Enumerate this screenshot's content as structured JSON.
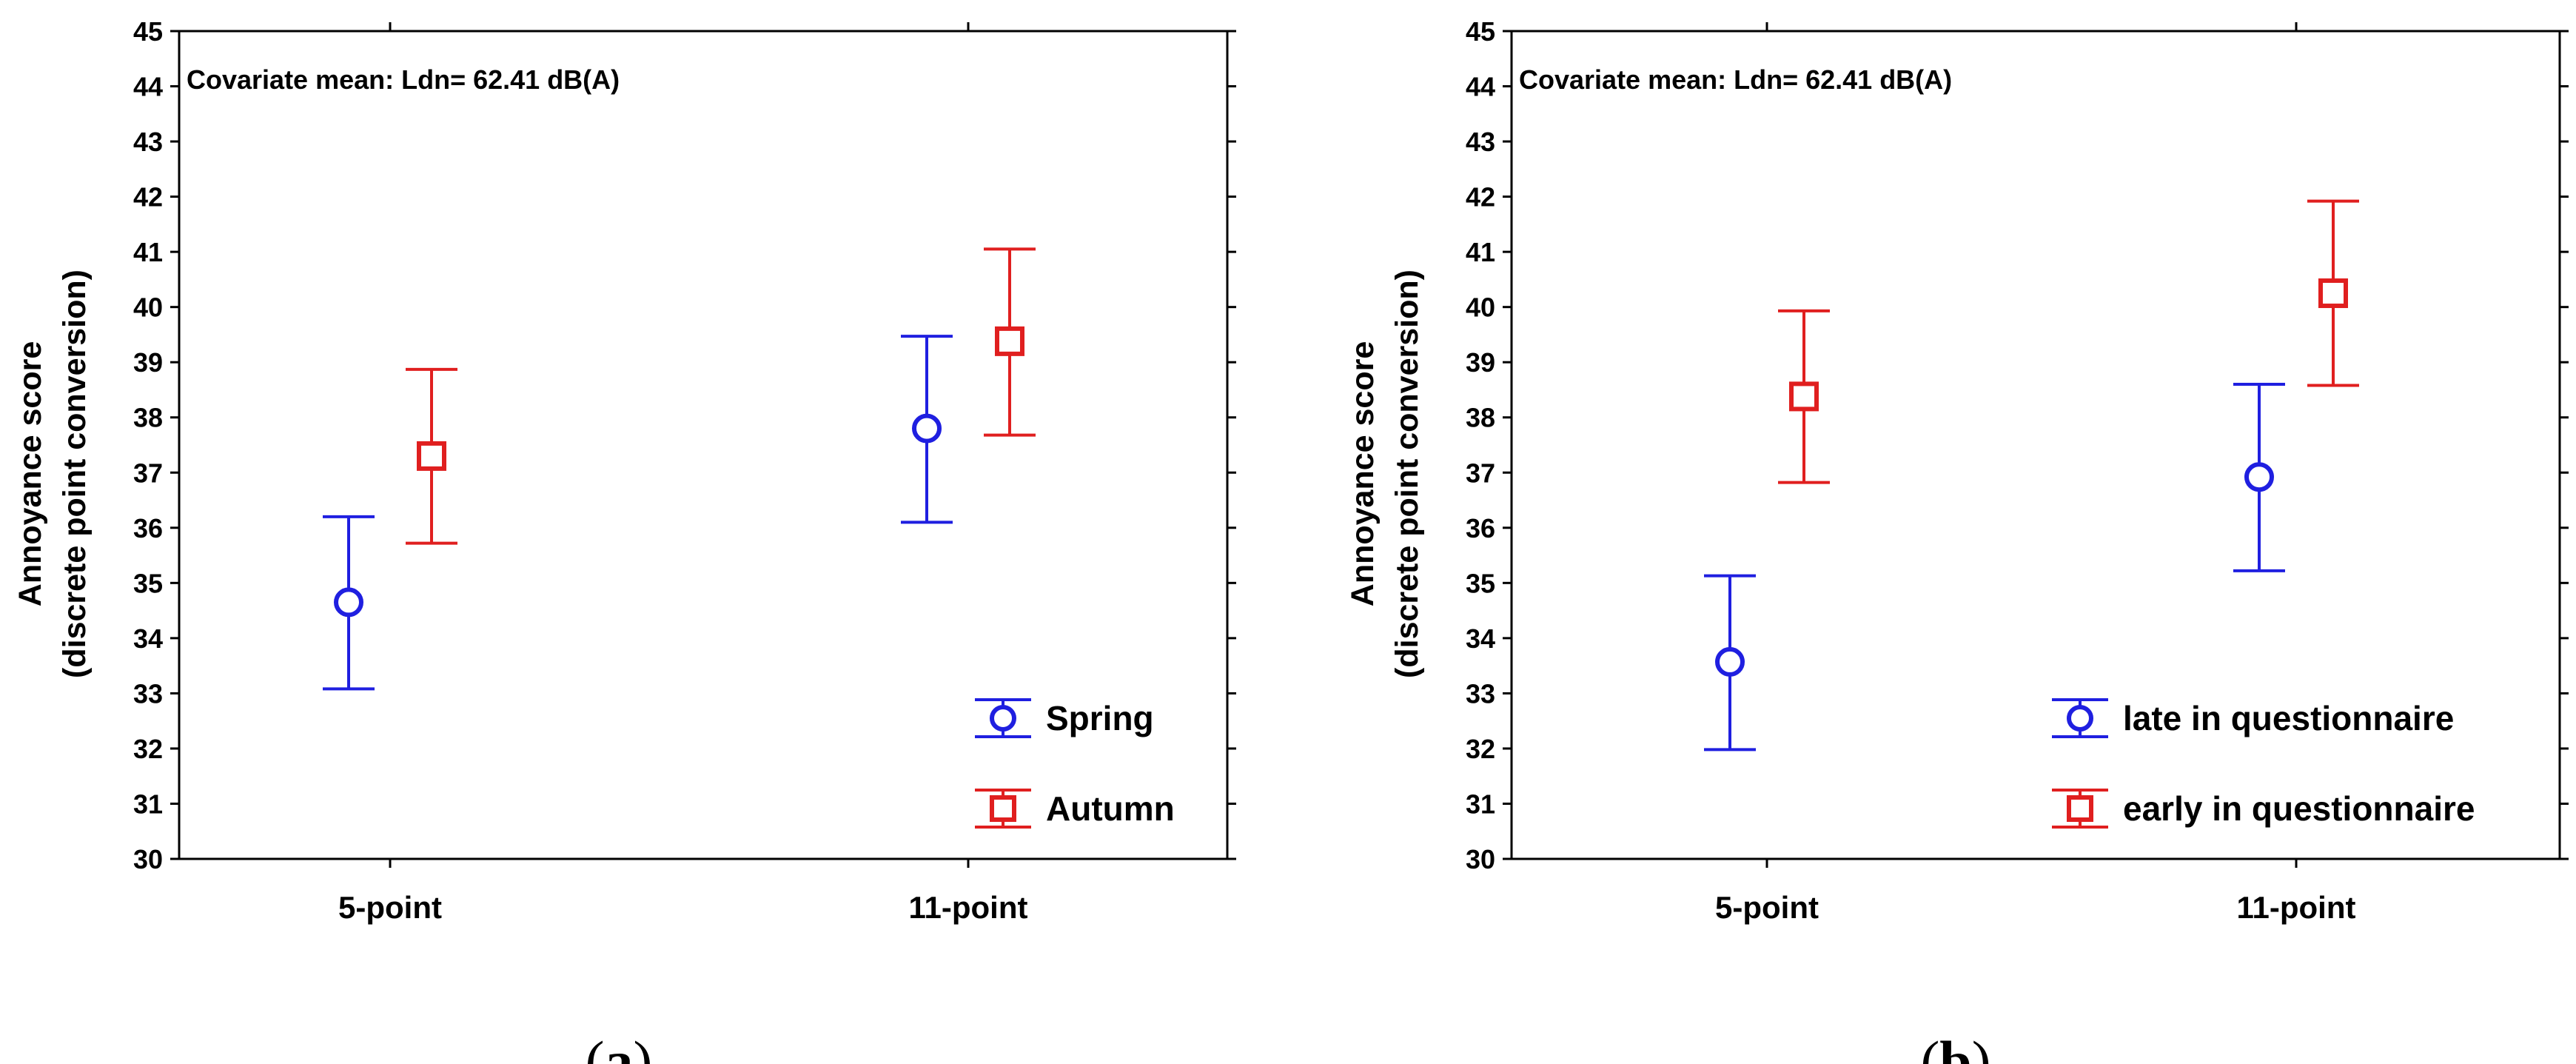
{
  "chart_data": [
    {
      "panel_label": "a",
      "type": "scatter",
      "annotation": "Covariate mean: Ldn= 62.41 dB(A)",
      "ylabel_line1": "Annoyance score",
      "ylabel_line2": "(discrete point conversion)",
      "ylim": [
        30,
        45
      ],
      "yticks": [
        "30",
        "31",
        "32",
        "33",
        "34",
        "35",
        "36",
        "37",
        "38",
        "39",
        "40",
        "41",
        "42",
        "43",
        "44",
        "45"
      ],
      "categories": [
        "5-point",
        "11-point"
      ],
      "legend_position": "bottom-right",
      "series": [
        {
          "name": "Spring",
          "marker": "circle",
          "color": "#1f1fe0",
          "values": [
            34.65,
            37.8
          ],
          "lower": [
            33.08,
            36.1
          ],
          "upper": [
            36.2,
            39.47
          ]
        },
        {
          "name": "Autumn",
          "marker": "square",
          "color": "#e01f1f",
          "values": [
            37.3,
            39.38
          ],
          "lower": [
            35.72,
            37.68
          ],
          "upper": [
            38.87,
            41.05
          ]
        }
      ]
    },
    {
      "panel_label": "b",
      "type": "scatter",
      "annotation": "Covariate mean: Ldn= 62.41 dB(A)",
      "ylabel_line1": "Annoyance score",
      "ylabel_line2": "(discrete point conversion)",
      "ylim": [
        30,
        45
      ],
      "yticks": [
        "30",
        "31",
        "32",
        "33",
        "34",
        "35",
        "36",
        "37",
        "38",
        "39",
        "40",
        "41",
        "42",
        "43",
        "44",
        "45"
      ],
      "categories": [
        "5-point",
        "11-point"
      ],
      "legend_position": "bottom-right",
      "series": [
        {
          "name": "late in questionnaire",
          "marker": "circle",
          "color": "#1f1fe0",
          "values": [
            33.57,
            36.92
          ],
          "lower": [
            31.98,
            35.22
          ],
          "upper": [
            35.13,
            38.6
          ]
        },
        {
          "name": "early in questionnaire",
          "marker": "square",
          "color": "#e01f1f",
          "values": [
            38.38,
            40.25
          ],
          "lower": [
            36.82,
            38.58
          ],
          "upper": [
            39.93,
            41.92
          ]
        }
      ]
    }
  ]
}
